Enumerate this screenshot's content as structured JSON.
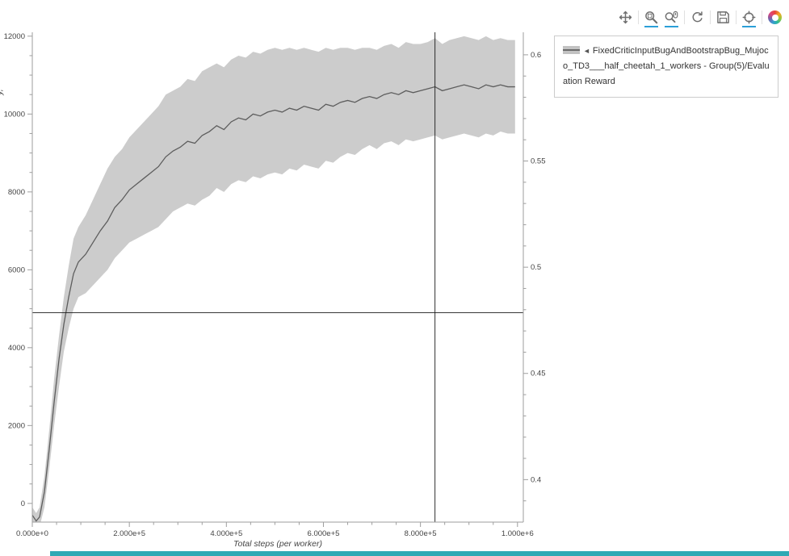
{
  "toolbar": {
    "active_underline_color": "#2b9fd8",
    "tools": [
      {
        "name": "pan",
        "icon": "pan-icon",
        "active": false
      },
      {
        "name": "box-zoom",
        "icon": "box-zoom-icon",
        "active": true
      },
      {
        "name": "wheel-zoom",
        "icon": "wheel-zoom-icon",
        "active": true
      },
      {
        "name": "reset",
        "icon": "reset-icon",
        "active": false
      },
      {
        "name": "save",
        "icon": "save-icon",
        "active": false
      },
      {
        "name": "crosshair",
        "icon": "crosshair-icon",
        "active": true
      },
      {
        "name": "bokeh-logo",
        "icon": "bokeh-logo-icon",
        "active": false
      }
    ]
  },
  "legend": {
    "marker": "◄",
    "label": "FixedCriticInputBugAndBootstrapBug_Mujoco_TD3___half_cheetah_1_workers - Group(5)/Evaluation Reward",
    "swatch_band_color": "#c2c2c2",
    "swatch_line_color": "#6b6b6b"
  },
  "bottom_bar": {
    "color": "#2fa9b4"
  },
  "chart_data": {
    "type": "line",
    "band": "std-deviation",
    "title": "",
    "xlabel": "Total steps (per worker)",
    "ylabel_fragment": "y,",
    "legend_position": "top-right-outside",
    "grid": false,
    "xlim": [
      0,
      1012000
    ],
    "ylim": [
      -480,
      12100
    ],
    "ylim_right": [
      0.38,
      0.6106
    ],
    "x_ticks": {
      "values": [
        0,
        200000,
        400000,
        600000,
        800000,
        1000000
      ],
      "labels": [
        "0.000e+0",
        "2.000e+5",
        "4.000e+5",
        "6.000e+5",
        "8.000e+5",
        "1.000e+6"
      ]
    },
    "y_ticks_left": {
      "values": [
        0,
        2000,
        4000,
        6000,
        8000,
        10000,
        12000
      ],
      "labels": [
        "0",
        "2000",
        "4000",
        "6000",
        "8000",
        "10000",
        "12000"
      ]
    },
    "y_ticks_right": {
      "values": [
        0.4,
        0.45,
        0.5,
        0.55,
        0.6
      ],
      "labels": [
        "0.4",
        "0.45",
        "0.5",
        "0.55",
        "0.6"
      ]
    },
    "crosshair": {
      "x": 830000,
      "y": 4900
    },
    "colors": {
      "band": "#c6c6c6",
      "line": "#5d5d5d",
      "axis": "#9e9e9e",
      "tick_label": "#444444",
      "crosshair": "#1a1a1a"
    },
    "series": [
      {
        "name": "FixedCriticInputBugAndBootstrapBug_Mujoco_TD3___half_cheetah_1_workers - Group(5)/Evaluation Reward",
        "x": [
          0,
          8000,
          15000,
          25000,
          35000,
          45000,
          55000,
          65000,
          75000,
          85000,
          95000,
          110000,
          125000,
          140000,
          155000,
          170000,
          185000,
          200000,
          215000,
          230000,
          245000,
          260000,
          275000,
          290000,
          305000,
          320000,
          335000,
          350000,
          365000,
          380000,
          395000,
          410000,
          425000,
          440000,
          455000,
          470000,
          485000,
          500000,
          515000,
          530000,
          545000,
          560000,
          575000,
          590000,
          605000,
          620000,
          635000,
          650000,
          665000,
          680000,
          695000,
          710000,
          725000,
          740000,
          755000,
          770000,
          785000,
          800000,
          815000,
          830000,
          845000,
          860000,
          875000,
          890000,
          905000,
          920000,
          935000,
          950000,
          965000,
          980000,
          995000
        ],
        "mean": [
          -300,
          -450,
          -350,
          300,
          1400,
          2600,
          3700,
          4600,
          5300,
          5900,
          6200,
          6400,
          6700,
          7000,
          7250,
          7600,
          7800,
          8050,
          8200,
          8350,
          8500,
          8650,
          8900,
          9050,
          9150,
          9300,
          9250,
          9450,
          9550,
          9700,
          9600,
          9800,
          9900,
          9850,
          10000,
          9950,
          10050,
          10100,
          10050,
          10150,
          10100,
          10200,
          10150,
          10100,
          10250,
          10200,
          10300,
          10350,
          10300,
          10400,
          10450,
          10400,
          10500,
          10550,
          10500,
          10600,
          10550,
          10600,
          10650,
          10700,
          10600,
          10650,
          10700,
          10750,
          10700,
          10650,
          10750,
          10700,
          10750,
          10700,
          10700
        ],
        "lower": [
          -550,
          -700,
          -600,
          -100,
          900,
          2000,
          3000,
          3900,
          4500,
          5000,
          5300,
          5400,
          5600,
          5800,
          6000,
          6300,
          6500,
          6700,
          6800,
          6900,
          7000,
          7100,
          7300,
          7500,
          7600,
          7700,
          7650,
          7800,
          7900,
          8100,
          8000,
          8200,
          8300,
          8250,
          8400,
          8350,
          8450,
          8500,
          8450,
          8600,
          8550,
          8700,
          8650,
          8600,
          8800,
          8750,
          8900,
          9000,
          8950,
          9100,
          9200,
          9100,
          9250,
          9300,
          9200,
          9350,
          9300,
          9350,
          9400,
          9450,
          9350,
          9400,
          9450,
          9500,
          9450,
          9400,
          9500,
          9450,
          9550,
          9500,
          9500
        ],
        "upper": [
          -100,
          -250,
          -100,
          700,
          1900,
          3200,
          4300,
          5300,
          6100,
          6800,
          7100,
          7400,
          7800,
          8200,
          8600,
          8900,
          9100,
          9400,
          9600,
          9800,
          10000,
          10200,
          10500,
          10600,
          10700,
          10900,
          10850,
          11100,
          11200,
          11300,
          11200,
          11400,
          11500,
          11450,
          11600,
          11550,
          11650,
          11700,
          11650,
          11700,
          11650,
          11700,
          11650,
          11600,
          11700,
          11650,
          11700,
          11700,
          11650,
          11700,
          11700,
          11650,
          11750,
          11800,
          11700,
          11850,
          11800,
          11800,
          11850,
          11950,
          11800,
          11900,
          11950,
          12000,
          11950,
          11900,
          12000,
          11900,
          11950,
          11900,
          11900
        ]
      }
    ]
  }
}
